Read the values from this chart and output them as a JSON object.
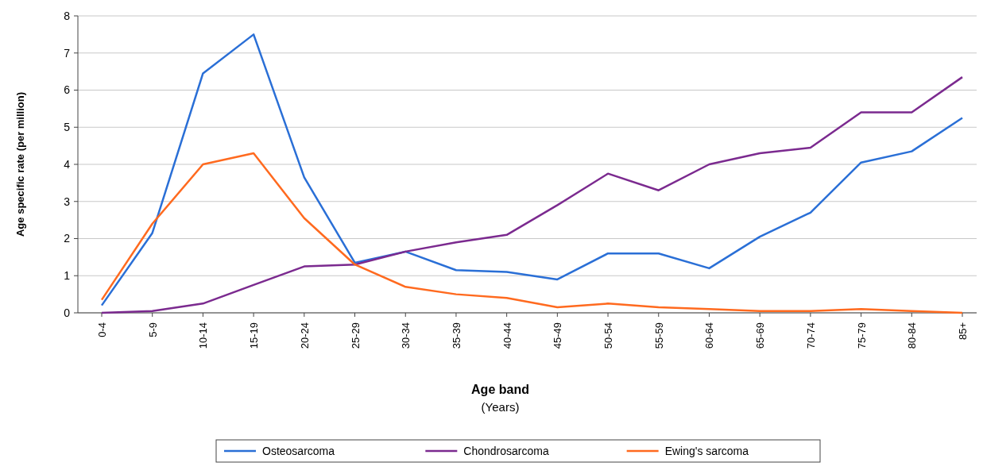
{
  "chart_data": {
    "type": "line",
    "xlabel": "Age band\n(Years)",
    "ylabel": "Age specific rate (per million)",
    "categories": [
      "0-4",
      "5-9",
      "10-14",
      "15-19",
      "20-24",
      "25-29",
      "30-34",
      "35-39",
      "40-44",
      "45-49",
      "50-54",
      "55-59",
      "60-64",
      "65-69",
      "70-74",
      "75-79",
      "80-84",
      "85+"
    ],
    "series": [
      {
        "name": "Osteosarcoma",
        "color": "#2a6fd6",
        "values": [
          0.2,
          2.15,
          6.45,
          7.5,
          3.65,
          1.35,
          1.65,
          1.15,
          1.1,
          0.9,
          1.6,
          1.6,
          1.2,
          2.05,
          2.7,
          4.05,
          4.35,
          5.25
        ]
      },
      {
        "name": "Chondrosarcoma",
        "color": "#7b2a8f",
        "values": [
          0,
          0.05,
          0.25,
          0.75,
          1.25,
          1.3,
          1.65,
          1.9,
          2.1,
          2.9,
          3.75,
          3.3,
          4,
          4.3,
          4.45,
          5.4,
          5.4,
          6.35
        ]
      },
      {
        "name": "Ewing's sarcoma",
        "color": "#ff6a1f",
        "values": [
          0.35,
          2.4,
          4,
          4.3,
          2.55,
          1.3,
          0.7,
          0.5,
          0.4,
          0.15,
          0.25,
          0.15,
          0.1,
          0.05,
          0.05,
          0.1,
          0.05,
          0
        ]
      }
    ],
    "ylim": [
      0,
      8
    ],
    "yticks": [
      0,
      1,
      2,
      3,
      4,
      5,
      6,
      7,
      8
    ],
    "grid": "y",
    "legend": "bottom",
    "marker": "none",
    "line_style": "solid"
  }
}
